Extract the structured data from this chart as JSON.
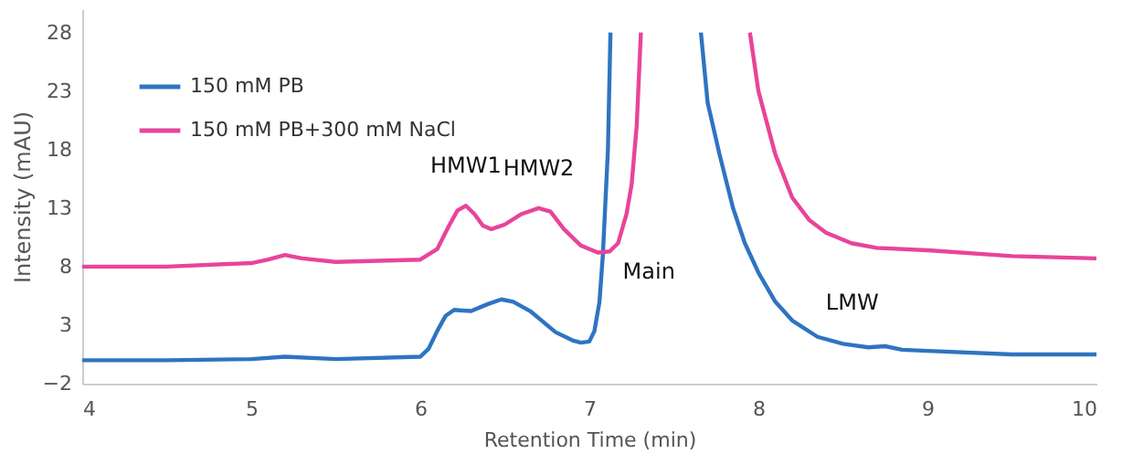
{
  "chart_data": {
    "type": "line",
    "xlabel": "Retention Time (min)",
    "ylabel": "Intensity (mAU)",
    "xlim": [
      4,
      10
    ],
    "xticks": [
      4,
      5,
      6,
      7,
      8,
      9,
      10
    ],
    "ylim": [
      -2,
      30
    ],
    "yticks": [
      -2,
      3,
      8,
      13,
      18,
      23,
      28
    ],
    "grid": false,
    "legend": "top left",
    "marker": "none",
    "line_style": "solid",
    "series": [
      {
        "name": "150 mM PB",
        "color": "#2e74c2",
        "x": [
          4,
          4.5,
          5,
          5.2,
          5.5,
          6.0,
          6.05,
          6.1,
          6.15,
          6.2,
          6.3,
          6.4,
          6.48,
          6.55,
          6.65,
          6.8,
          6.9,
          6.95,
          7.0,
          7.03,
          7.06,
          7.08,
          7.11,
          7.125,
          7.4,
          7.66,
          7.7,
          7.77,
          7.85,
          7.92,
          8.0,
          8.1,
          8.2,
          8.35,
          8.5,
          8.65,
          8.75,
          8.85,
          9.0,
          9.5,
          10
        ],
        "values": [
          0.0,
          0.0,
          0.1,
          0.3,
          0.1,
          0.3,
          1.0,
          2.5,
          3.8,
          4.3,
          4.2,
          4.8,
          5.2,
          5.0,
          4.2,
          2.4,
          1.7,
          1.5,
          1.6,
          2.5,
          5.0,
          9.0,
          18.0,
          28,
          null,
          28,
          22.0,
          17.6,
          13.0,
          10.0,
          7.5,
          5.0,
          3.4,
          2.0,
          1.4,
          1.1,
          1.2,
          0.9,
          0.8,
          0.5,
          0.5
        ]
      },
      {
        "name": "150 mM PB+300 mM NaCl",
        "color": "#e8449b",
        "x": [
          4,
          4.5,
          5.0,
          5.1,
          5.2,
          5.3,
          5.5,
          6.0,
          6.1,
          6.17,
          6.22,
          6.27,
          6.32,
          6.37,
          6.42,
          6.5,
          6.6,
          6.7,
          6.77,
          6.85,
          6.95,
          7.05,
          7.12,
          7.17,
          7.22,
          7.25,
          7.28,
          7.305,
          7.6,
          7.95,
          8.0,
          8.1,
          8.2,
          8.3,
          8.4,
          8.55,
          8.7,
          9.0,
          9.5,
          10
        ],
        "values": [
          8.0,
          8.0,
          8.3,
          8.6,
          9.0,
          8.7,
          8.4,
          8.6,
          9.5,
          11.5,
          12.8,
          13.2,
          12.5,
          11.5,
          11.2,
          11.6,
          12.5,
          13.0,
          12.7,
          11.2,
          9.8,
          9.2,
          9.3,
          10.0,
          12.5,
          15.0,
          20.0,
          28,
          null,
          28,
          23.0,
          17.6,
          13.9,
          12.0,
          10.9,
          10.0,
          9.6,
          9.4,
          8.9,
          8.7
        ]
      }
    ],
    "annotations": [
      {
        "text": "HMW1",
        "x": 6.27,
        "y": 13.2
      },
      {
        "text": "HMW2",
        "x": 6.7,
        "y": 13.0
      },
      {
        "text": "Main",
        "x": 7.05,
        "y": 9.2
      },
      {
        "text": "LMW",
        "x": 8.75,
        "y": 1.2
      }
    ]
  }
}
